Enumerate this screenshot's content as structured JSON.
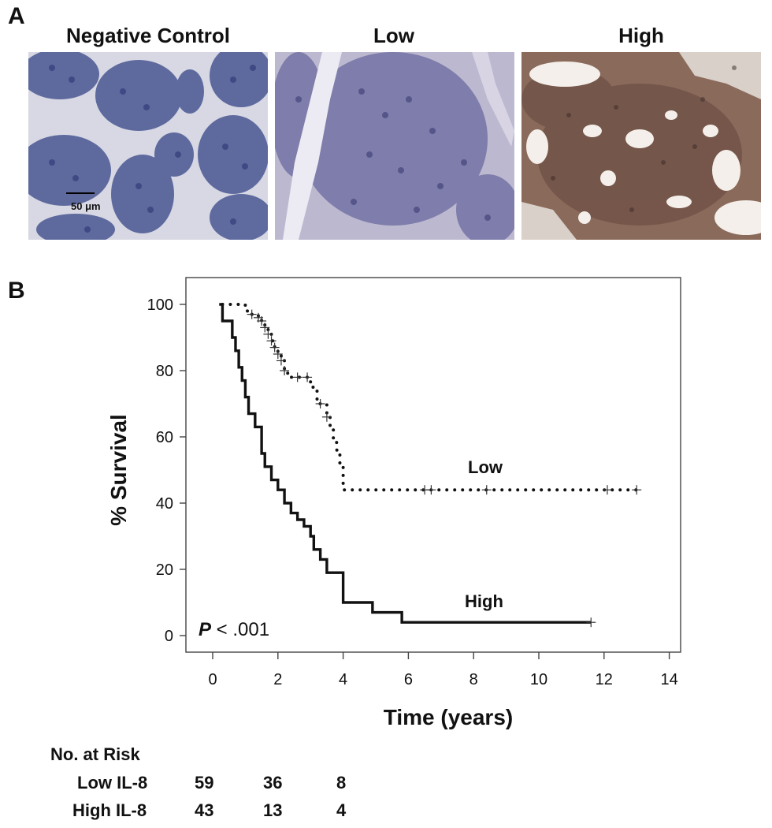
{
  "panel_a": {
    "letter": "A",
    "images": [
      {
        "title": "Negative Control",
        "stain": "negative"
      },
      {
        "title": "Low",
        "stain": "low"
      },
      {
        "title": "High",
        "stain": "high"
      }
    ],
    "scale_bar": "50 μm"
  },
  "panel_b": {
    "letter": "B",
    "p_prefix": "P",
    "p_rest": " < .001",
    "curve_labels": {
      "low": "Low",
      "high": "High"
    }
  },
  "chart_data": {
    "type": "line",
    "xlabel": "Time (years)",
    "ylabel": "% Survival",
    "xlim": [
      0,
      14
    ],
    "ylim": [
      0,
      100
    ],
    "xticks": [
      0,
      2,
      4,
      6,
      8,
      10,
      12,
      14
    ],
    "yticks": [
      0,
      20,
      40,
      60,
      80,
      100
    ],
    "series": [
      {
        "name": "Low",
        "style": "dotted",
        "x": [
          0.3,
          0.9,
          1.0,
          1.2,
          1.4,
          1.5,
          1.6,
          1.7,
          1.8,
          1.9,
          2.0,
          2.1,
          2.2,
          2.3,
          2.5,
          3.0,
          3.2,
          3.5,
          3.6,
          3.7,
          3.8,
          3.9,
          4.0,
          13.0
        ],
        "y": [
          100,
          100,
          98,
          97,
          96,
          95,
          93,
          91,
          89,
          87,
          85,
          83,
          80,
          78,
          78,
          75,
          70,
          66,
          63,
          59,
          56,
          52,
          44,
          44
        ],
        "censored_x": [
          1.2,
          1.4,
          1.5,
          1.6,
          1.7,
          1.8,
          1.9,
          2.0,
          2.1,
          2.2,
          2.6,
          2.9,
          3.3,
          3.5,
          6.5,
          6.7,
          8.4,
          12.1,
          13.0
        ]
      },
      {
        "name": "High",
        "style": "solid",
        "x": [
          0.2,
          0.3,
          0.6,
          0.7,
          0.8,
          0.9,
          1.0,
          1.1,
          1.3,
          1.5,
          1.6,
          1.8,
          2.0,
          2.2,
          2.4,
          2.6,
          2.8,
          3.0,
          3.1,
          3.3,
          3.5,
          4.0,
          4.9,
          5.8,
          11.6
        ],
        "y": [
          100,
          95,
          90,
          86,
          81,
          77,
          72,
          67,
          63,
          55,
          51,
          47,
          44,
          40,
          37,
          35,
          33,
          30,
          26,
          23,
          19,
          10,
          7,
          4,
          4
        ],
        "censored_x": [
          11.6
        ]
      }
    ]
  },
  "risk_table": {
    "header": "No. at Risk",
    "rows": [
      {
        "label": "Low IL-8",
        "values": [
          "59",
          "36",
          "8"
        ]
      },
      {
        "label": "High IL-8",
        "values": [
          "43",
          "13",
          "4"
        ]
      }
    ]
  }
}
